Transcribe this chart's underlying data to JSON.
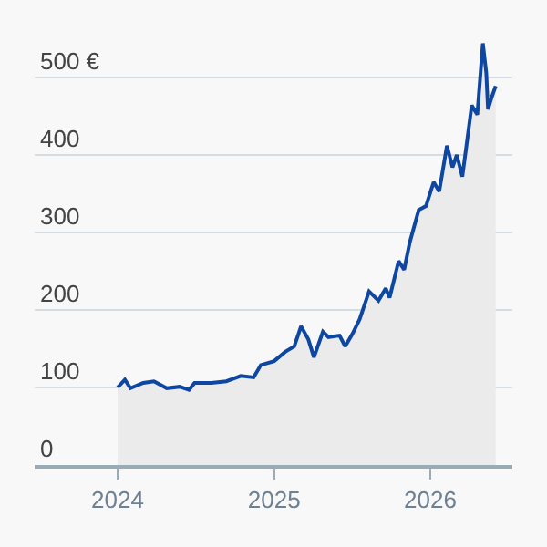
{
  "chart_data": {
    "type": "area",
    "x": [
      "2024-01-01",
      "2024-01-18",
      "2024-01-31",
      "2024-03-01",
      "2024-03-26",
      "2024-04-25",
      "2024-05-25",
      "2024-06-16",
      "2024-06-29",
      "2024-08-07",
      "2024-09-11",
      "2024-10-15",
      "2024-11-14",
      "2024-12-01",
      "2025-01-01",
      "2025-01-27",
      "2025-02-17",
      "2025-03-05",
      "2025-03-22",
      "2025-04-04",
      "2025-04-25",
      "2025-05-08",
      "2025-06-03",
      "2025-06-16",
      "2025-07-03",
      "2025-07-20",
      "2025-08-11",
      "2025-09-02",
      "2025-09-19",
      "2025-09-28",
      "2025-10-19",
      "2025-11-01",
      "2025-11-14",
      "2025-12-05",
      "2025-12-22",
      "2026-01-09",
      "2026-01-22",
      "2026-02-09",
      "2026-02-22",
      "2026-03-04",
      "2026-03-17",
      "2026-03-25",
      "2026-04-08",
      "2026-04-21",
      "2026-05-04",
      "2026-05-12",
      "2026-05-16",
      "2026-05-25",
      "2026-06-03"
    ],
    "series": [
      {
        "color": "#0d47a1",
        "values": [
          100,
          110,
          99,
          106,
          108,
          99,
          101,
          97,
          106,
          106,
          108,
          115,
          113,
          129,
          134,
          146,
          153,
          179,
          162,
          139,
          172,
          165,
          167,
          153,
          169,
          188,
          224,
          212,
          228,
          216,
          263,
          252,
          287,
          329,
          334,
          365,
          353,
          412,
          384,
          400,
          372,
          405,
          464,
          452,
          544,
          506,
          459,
          475,
          489
        ]
      }
    ],
    "xlim": [
      "2023-06-21",
      "2026-07-12"
    ],
    "xticks": [
      {
        "value": "2024-01-01",
        "label": "2024"
      },
      {
        "value": "2025-01-01",
        "label": "2025"
      },
      {
        "value": "2026-01-01",
        "label": "2026"
      }
    ],
    "ylim": [
      0,
      600
    ],
    "yticks": [
      0,
      100,
      200,
      300,
      400,
      {
        "value": 500,
        "label": "500 €"
      }
    ],
    "grid": "y",
    "legend": false
  }
}
